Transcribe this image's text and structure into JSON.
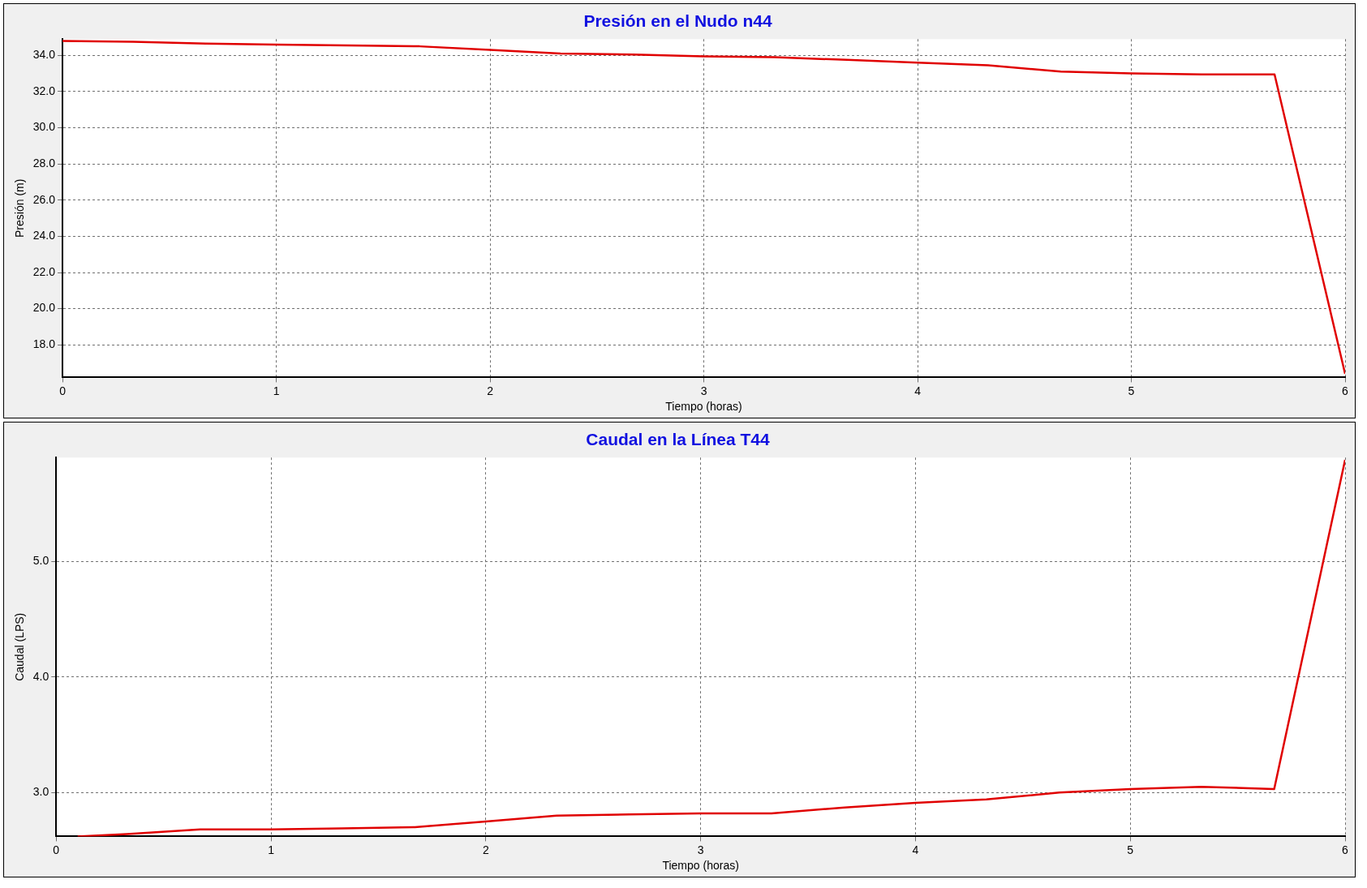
{
  "chart_data": [
    {
      "type": "line",
      "title": "Presión en el Nudo n44",
      "xlabel": "Tiempo (horas)",
      "ylabel": "Presión (m)",
      "x": [
        0,
        0.33,
        0.67,
        1,
        1.33,
        1.67,
        2,
        2.33,
        2.67,
        3,
        3.33,
        3.67,
        4,
        4.33,
        4.67,
        5,
        5.33,
        5.67,
        6
      ],
      "series": [
        {
          "color": "#e00000",
          "values": [
            34.8,
            34.75,
            34.65,
            34.6,
            34.55,
            34.5,
            34.3,
            34.1,
            34.05,
            33.95,
            33.9,
            33.75,
            33.6,
            33.45,
            33.1,
            33.0,
            32.95,
            32.95,
            16.4
          ]
        }
      ],
      "xlim": [
        0,
        6
      ],
      "xticks": [
        0,
        1,
        2,
        3,
        4,
        5,
        6
      ],
      "ylim": [
        16.2,
        34.9
      ],
      "yticks": [
        {
          "value": 18,
          "label": "18.0"
        },
        {
          "value": 20,
          "label": "20.0"
        },
        {
          "value": 22,
          "label": "22.0"
        },
        {
          "value": 24,
          "label": "24.0"
        },
        {
          "value": 26,
          "label": "26.0"
        },
        {
          "value": 28,
          "label": "28.0"
        },
        {
          "value": 30,
          "label": "30.0"
        },
        {
          "value": 32,
          "label": "32.0"
        },
        {
          "value": 34,
          "label": "34.0"
        }
      ],
      "grid": true,
      "legend": false,
      "marker": "none",
      "line_style": "solid"
    },
    {
      "type": "line",
      "title": "Caudal en la Línea T44",
      "xlabel": "Tiempo (horas)",
      "ylabel": "Caudal (LPS)",
      "x": [
        0.1,
        0.33,
        0.67,
        1,
        1.33,
        1.67,
        2,
        2.33,
        2.67,
        3,
        3.33,
        3.67,
        4,
        4.33,
        4.67,
        5,
        5.33,
        5.67,
        6
      ],
      "series": [
        {
          "color": "#e00000",
          "values": [
            2.62,
            2.64,
            2.68,
            2.68,
            2.69,
            2.7,
            2.75,
            2.8,
            2.81,
            2.82,
            2.82,
            2.87,
            2.91,
            2.94,
            3.0,
            3.03,
            3.05,
            3.03,
            5.88
          ]
        }
      ],
      "xlim": [
        0,
        6
      ],
      "xticks": [
        0,
        1,
        2,
        3,
        4,
        5,
        6
      ],
      "ylim": [
        2.62,
        5.9
      ],
      "yticks": [
        {
          "value": 3,
          "label": "3.0"
        },
        {
          "value": 4,
          "label": "4.0"
        },
        {
          "value": 5,
          "label": "5.0"
        }
      ],
      "grid": true,
      "legend": false,
      "marker": "none",
      "line_style": "solid"
    }
  ]
}
